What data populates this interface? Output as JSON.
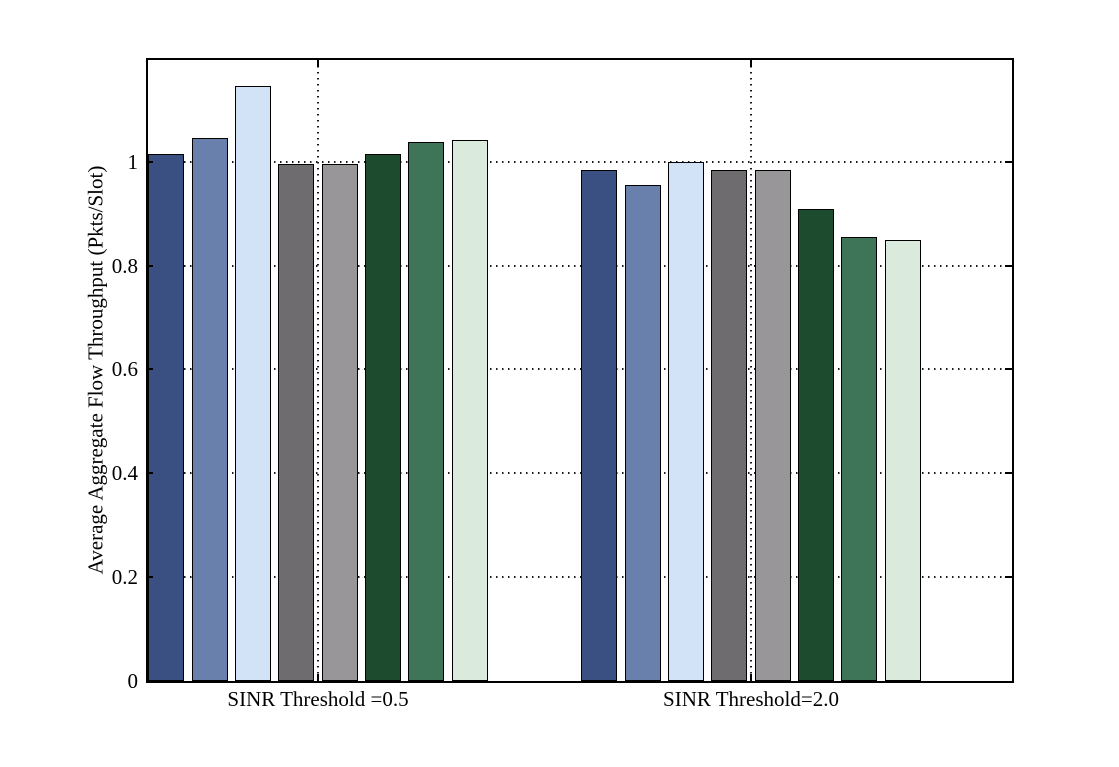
{
  "figure": {
    "background": "#ffffff",
    "axis_color": "#000000",
    "grid_dot_color": "#1a1a1a"
  },
  "chart_data": {
    "type": "bar",
    "title": "",
    "xlabel": "",
    "ylabel": "Average Aggregate Flow Throughput (Pkts/Slot)",
    "categories": [
      "SINR Threshold =0.5",
      "SINR Threshold=2.0"
    ],
    "series": [
      {
        "color": "#3A5083",
        "values": [
          1.015,
          0.985
        ]
      },
      {
        "color": "#6880AB",
        "values": [
          1.045,
          0.955
        ]
      },
      {
        "color": "#D3E3F7",
        "values": [
          1.145,
          1.0
        ]
      },
      {
        "color": "#6F6C6F",
        "values": [
          0.995,
          0.985
        ]
      },
      {
        "color": "#999699",
        "values": [
          0.995,
          0.985
        ]
      },
      {
        "color": "#1D4B2E",
        "values": [
          1.015,
          0.91
        ]
      },
      {
        "color": "#3E7457",
        "values": [
          1.038,
          0.855
        ]
      },
      {
        "color": "#DAEADD",
        "values": [
          1.042,
          0.85
        ]
      }
    ],
    "ylim": [
      0,
      1.196
    ],
    "yticks": [
      0,
      0.2,
      0.4,
      0.6,
      0.8,
      1
    ],
    "ytick_labels": [
      "0",
      "0.2",
      "0.4",
      "0.6",
      "0.8",
      "1"
    ],
    "grid": true,
    "legend": "none",
    "bar_edge_color": "#000000"
  }
}
